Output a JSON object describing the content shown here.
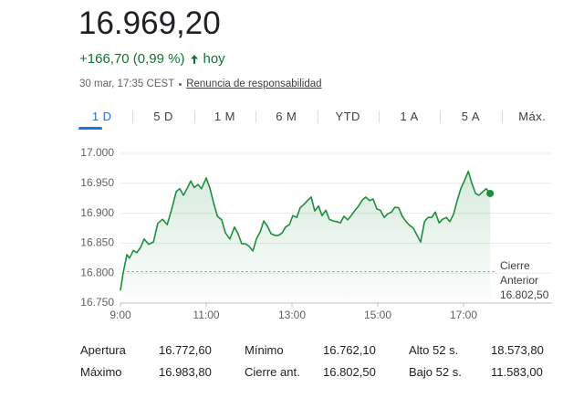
{
  "header": {
    "price": "16.969,20",
    "change": "+166,70 (0,99 %)",
    "period": "hoy",
    "timestamp": "30 mar, 17:35 CEST",
    "disclaimer": "Renuncia de responsabilidad"
  },
  "tabs": {
    "labels": [
      "1 D",
      "5 D",
      "1 M",
      "6 M",
      "YTD",
      "1 A",
      "5 A",
      "Máx."
    ],
    "selected": 0
  },
  "chart_data": {
    "type": "line",
    "color": "#1e8e3e",
    "grid": true,
    "xlim": [
      9,
      19
    ],
    "xticks": [
      {
        "value": 9,
        "label": "9:00"
      },
      {
        "value": 11,
        "label": "11:00"
      },
      {
        "value": 13,
        "label": "13:00"
      },
      {
        "value": 15,
        "label": "15:00"
      },
      {
        "value": 17,
        "label": "17:00"
      }
    ],
    "ylim": [
      16750,
      17000
    ],
    "yticks": [
      {
        "value": 16750,
        "label": "16.750"
      },
      {
        "value": 16800,
        "label": "16.800"
      },
      {
        "value": 16850,
        "label": "16.850"
      },
      {
        "value": 16900,
        "label": "16.900"
      },
      {
        "value": 16950,
        "label": "16.950"
      },
      {
        "value": 17000,
        "label": "17.000"
      }
    ],
    "reference_line": {
      "name": "Cierre Anterior",
      "value": 16802.5,
      "label": "16.802,50"
    },
    "x": [
      9.0,
      9.06,
      9.15,
      9.21,
      9.3,
      9.38,
      9.47,
      9.55,
      9.66,
      9.77,
      9.87,
      9.98,
      10.09,
      10.19,
      10.3,
      10.38,
      10.47,
      10.55,
      10.64,
      10.72,
      10.81,
      10.89,
      11.0,
      11.09,
      11.17,
      11.26,
      11.36,
      11.45,
      11.55,
      11.66,
      11.74,
      11.83,
      11.91,
      12.0,
      12.09,
      12.17,
      12.26,
      12.34,
      12.43,
      12.51,
      12.6,
      12.68,
      12.77,
      12.85,
      12.94,
      13.02,
      13.11,
      13.19,
      13.28,
      13.36,
      13.45,
      13.53,
      13.62,
      13.7,
      13.79,
      13.87,
      13.96,
      14.04,
      14.13,
      14.21,
      14.3,
      14.38,
      14.47,
      14.55,
      14.64,
      14.72,
      14.81,
      14.89,
      14.98,
      15.06,
      15.15,
      15.23,
      15.32,
      15.4,
      15.49,
      15.57,
      15.66,
      15.74,
      15.83,
      15.91,
      16.0,
      16.09,
      16.17,
      16.26,
      16.34,
      16.43,
      16.51,
      16.6,
      16.68,
      16.77,
      16.85,
      16.94,
      17.02,
      17.11,
      17.19,
      17.28,
      17.36,
      17.45,
      17.53,
      17.62
    ],
    "values": [
      16771,
      16799,
      16831,
      16825,
      16838,
      16834,
      16843,
      16857,
      16848,
      16852,
      16883,
      16890,
      16881,
      16905,
      16936,
      16941,
      16930,
      16941,
      16954,
      16943,
      16948,
      16941,
      16959,
      16941,
      16918,
      16895,
      16889,
      16867,
      16857,
      16877,
      16866,
      16849,
      16849,
      16845,
      16837,
      16857,
      16869,
      16887,
      16878,
      16866,
      16863,
      16863,
      16867,
      16877,
      16881,
      16896,
      16893,
      16909,
      16915,
      16921,
      16927,
      16904,
      16912,
      16896,
      16905,
      16890,
      16887,
      16886,
      16884,
      16895,
      16889,
      16896,
      16905,
      16912,
      16922,
      16927,
      16921,
      16924,
      16907,
      16905,
      16893,
      16899,
      16902,
      16910,
      16909,
      16895,
      16886,
      16880,
      16875,
      16864,
      16852,
      16886,
      16893,
      16893,
      16902,
      16884,
      16890,
      16893,
      16886,
      16899,
      16921,
      16942,
      16954,
      16970,
      16951,
      16933,
      16930,
      16936,
      16941,
      16933
    ]
  },
  "stats": {
    "rows": [
      [
        "Apertura",
        "16.772,60",
        "Mínimo",
        "16.762,10",
        "Alto 52 s.",
        "18.573,80"
      ],
      [
        "Máximo",
        "16.983,80",
        "Cierre ant.",
        "16.802,50",
        "Bajo 52 s.",
        "11.583,00"
      ]
    ]
  }
}
